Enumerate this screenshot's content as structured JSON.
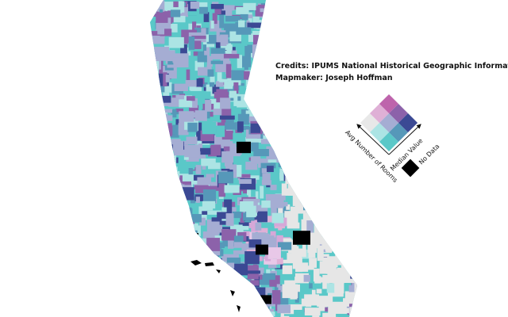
{
  "credits": "Credits: IPUMS National Historical Geographic Information Syste",
  "mapmaker": "Mapmaker: Joseph Hoffman",
  "legend": {
    "x_label": "Avg Number of Rooms",
    "y_label": "Median Value",
    "no_data": "No Data"
  }
}
